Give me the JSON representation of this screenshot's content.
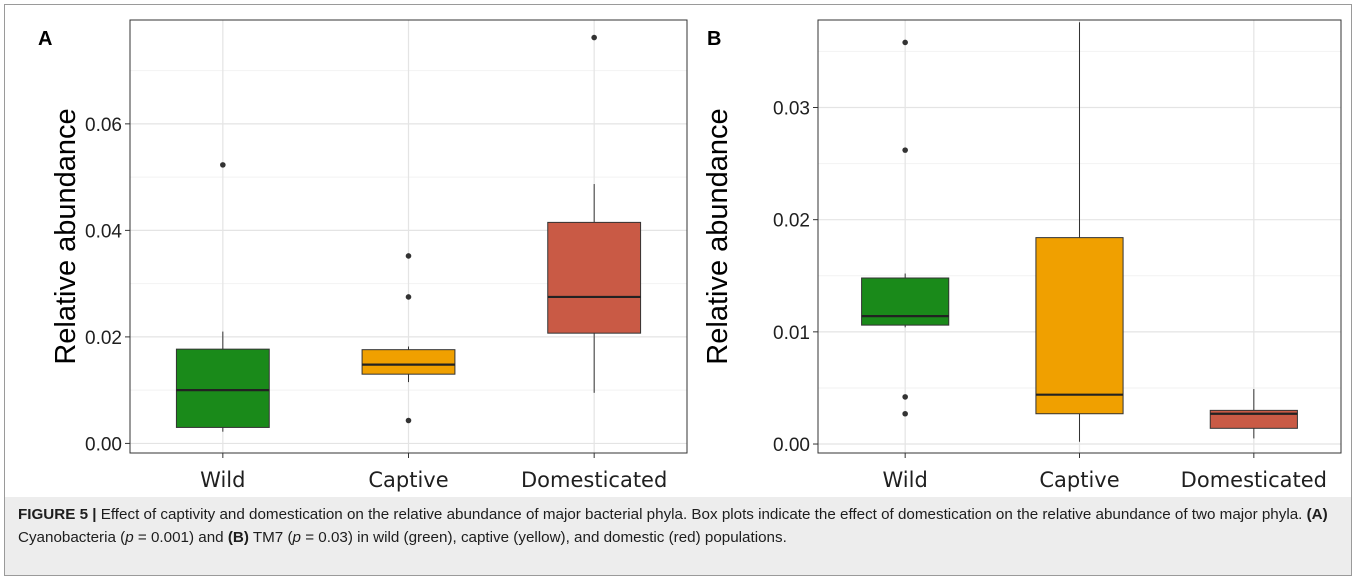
{
  "figure_label": "FIGURE 5 |",
  "caption": {
    "part1": " Effect of captivity and domestication on the relative abundance of major bacterial phyla. Box plots indicate the effect of domestication on the relative abundance of two major phyla. ",
    "a_ref": "(A)",
    "part2": " Cyanobacteria (",
    "p_italic_1": "p",
    "part3": " = 0.001) and ",
    "b_ref": "(B)",
    "part4": " TM7 (",
    "p_italic_2": "p",
    "part5": " = 0.03) in wild (green), captive (yellow), and domestic (red) populations."
  },
  "chart_data": [
    {
      "type": "box",
      "panel": "A",
      "title": "",
      "ylabel": "Relative abundance",
      "xlabel": "",
      "categories": [
        "Wild",
        "Captive",
        "Domesticated"
      ],
      "ylim": [
        -0.0018,
        0.0795
      ],
      "yticks": [
        0.0,
        0.02,
        0.04,
        0.06
      ],
      "ytick_labels": [
        "0.00",
        "0.02",
        "0.04",
        "0.06"
      ],
      "grid": true,
      "colors": [
        "#1a8a1a",
        "#f0a000",
        "#c95a45"
      ],
      "boxes": [
        {
          "category": "Wild",
          "min": 0.0022,
          "q1": 0.003,
          "median": 0.01,
          "q3": 0.0177,
          "max": 0.021,
          "outliers": [
            0.0523
          ]
        },
        {
          "category": "Captive",
          "min": 0.0115,
          "q1": 0.013,
          "median": 0.0148,
          "q3": 0.0176,
          "max": 0.0182,
          "outliers": [
            0.0352,
            0.0275,
            0.0043
          ]
        },
        {
          "category": "Domesticated",
          "min": 0.0095,
          "q1": 0.0207,
          "median": 0.0275,
          "q3": 0.0415,
          "max": 0.0487,
          "outliers": [
            0.0762
          ]
        }
      ]
    },
    {
      "type": "box",
      "panel": "B",
      "title": "",
      "ylabel": "Relative abundance",
      "xlabel": "",
      "categories": [
        "Wild",
        "Captive",
        "Domesticated"
      ],
      "ylim": [
        -0.0008,
        0.0378
      ],
      "yticks": [
        0.0,
        0.01,
        0.02,
        0.03
      ],
      "ytick_labels": [
        "0.00",
        "0.01",
        "0.02",
        "0.03"
      ],
      "grid": true,
      "colors": [
        "#1a8a1a",
        "#f0a000",
        "#c95a45"
      ],
      "boxes": [
        {
          "category": "Wild",
          "min": 0.0104,
          "q1": 0.0106,
          "median": 0.0114,
          "q3": 0.0148,
          "max": 0.0152,
          "outliers": [
            0.0358,
            0.0262,
            0.0042,
            0.0027
          ]
        },
        {
          "category": "Captive",
          "min": 0.0002,
          "q1": 0.0027,
          "median": 0.0044,
          "q3": 0.0184,
          "max": 0.0376,
          "outliers": []
        },
        {
          "category": "Domesticated",
          "min": 0.0005,
          "q1": 0.0014,
          "median": 0.0027,
          "q3": 0.003,
          "max": 0.0049,
          "outliers": []
        }
      ]
    }
  ]
}
